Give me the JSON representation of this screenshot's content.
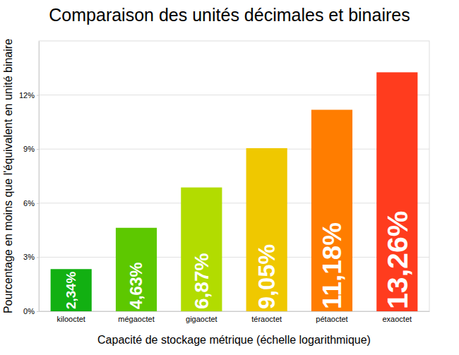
{
  "chart_data": {
    "type": "bar",
    "title": "Comparaison des unités décimales et binaires",
    "x_label": "Capacité de stockage métrique (échelle logarithmique)",
    "y_label": "Pourcentage en moins que l'équivalent en unité binaire",
    "categories": [
      "kilooctet",
      "mégaoctet",
      "gigaoctet",
      "téraoctet",
      "pétaoctet",
      "exaoctet"
    ],
    "values": [
      2.34,
      4.63,
      6.87,
      9.05,
      11.18,
      13.26
    ],
    "value_labels": [
      "2,34%",
      "4,63%",
      "6,87%",
      "9,05%",
      "11,18%",
      "13,26%"
    ],
    "colors": [
      "#12b012",
      "#5dc800",
      "#b2dc00",
      "#efc800",
      "#ff7d00",
      "#ff3c1e"
    ],
    "ylim": [
      0,
      15
    ],
    "yticks": [
      {
        "value": 0,
        "label": "0%"
      },
      {
        "value": 3,
        "label": "3%"
      },
      {
        "value": 6,
        "label": "6%"
      },
      {
        "value": 9,
        "label": "9%"
      },
      {
        "value": 12,
        "label": "12%"
      }
    ],
    "grid": true,
    "data_labels": true
  }
}
